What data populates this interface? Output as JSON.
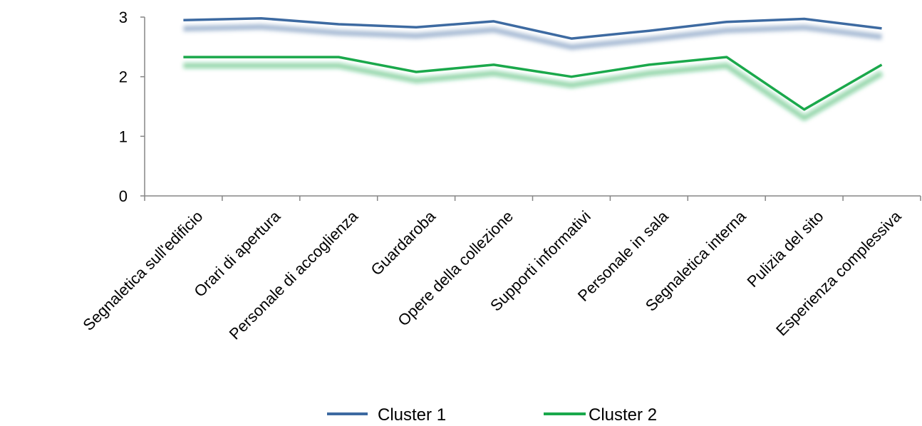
{
  "chart_data": {
    "type": "line",
    "categories": [
      "Segnaletica sull'edificio",
      "Orari di apertura",
      "Personale di accoglienza",
      "Guardaroba",
      "Opere della collezione",
      "Supporti informativi",
      "Personale in sala",
      "Segnaletica interna",
      "Pulizia del sito",
      "Esperienza complessiva"
    ],
    "series": [
      {
        "name": "Cluster 1",
        "color": "#3d6aa1",
        "values": [
          2.95,
          2.98,
          2.88,
          2.83,
          2.93,
          2.64,
          2.77,
          2.92,
          2.97,
          2.81
        ]
      },
      {
        "name": "Cluster 2",
        "color": "#1aa84b",
        "values": [
          2.33,
          2.33,
          2.33,
          2.08,
          2.2,
          2.0,
          2.2,
          2.33,
          1.45,
          2.2
        ]
      }
    ],
    "yticks": [
      "0",
      "1",
      "2",
      "3"
    ],
    "ylim": [
      0,
      3
    ],
    "grid": false,
    "legend": "bottom",
    "title": "",
    "xlabel": "",
    "ylabel": ""
  }
}
